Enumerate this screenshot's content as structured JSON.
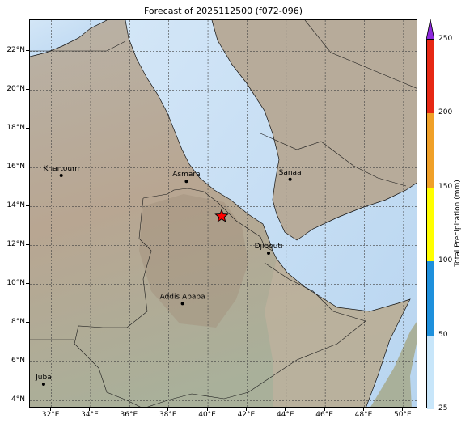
{
  "title": "Forecast of 2025112500 (f072-096)",
  "map": {
    "lat_ticks": [
      "22°N",
      "20°N",
      "18°N",
      "16°N",
      "14°N",
      "12°N",
      "10°N",
      "8°N",
      "6°N",
      "4°N"
    ],
    "lon_ticks": [
      "32°E",
      "34°E",
      "36°E",
      "38°E",
      "40°E",
      "42°E",
      "44°E",
      "46°E",
      "48°E",
      "50°E"
    ],
    "cities": [
      {
        "name": "Khartoum",
        "lon": 32.5,
        "lat": 15.6
      },
      {
        "name": "Asmara",
        "lon": 38.9,
        "lat": 15.3
      },
      {
        "name": "Sanaa",
        "lon": 44.2,
        "lat": 15.4
      },
      {
        "name": "Djibouti",
        "lon": 43.1,
        "lat": 11.6
      },
      {
        "name": "Addis Ababa",
        "lon": 38.7,
        "lat": 9.0
      },
      {
        "name": "Juba",
        "lon": 31.6,
        "lat": 4.85
      }
    ],
    "marker": {
      "symbol": "star",
      "lon": 40.7,
      "lat": 13.5,
      "color": "#ff0000"
    }
  },
  "colorbar": {
    "label": "Total Precipitation (mm)",
    "ticks": [
      "25",
      "50",
      "100",
      "150",
      "200",
      "250"
    ],
    "colors": [
      "#c8e6fa",
      "#1e90dc",
      "#ffff00",
      "#f0a028",
      "#e62814",
      "#8c28dc"
    ]
  }
}
